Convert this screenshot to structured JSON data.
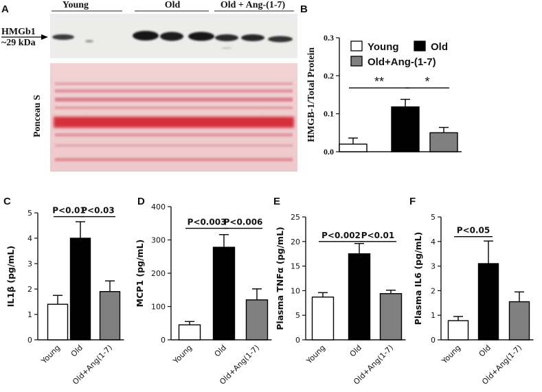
{
  "panel_a": {
    "letter": "A",
    "groups": [
      "Young",
      "Old",
      "Old + Ang-(1-7)"
    ],
    "label_line1": "HMGb1",
    "label_line2": "~29 kDa",
    "ponceau_label": "Ponceau S"
  },
  "chart_data": [
    {
      "panel": "B",
      "type": "bar",
      "categories": [
        "Young",
        "Old",
        "Old+Ang-(1-7)"
      ],
      "values": [
        0.02,
        0.118,
        0.05
      ],
      "errors": [
        0.016,
        0.02,
        0.014
      ],
      "ylabel": "HMGB-1/Total Protein",
      "ylim": [
        0,
        0.3
      ],
      "yticks": [
        "0.0",
        "0.1",
        "0.2",
        "0.3"
      ],
      "tick_values": [
        0,
        0.1,
        0.2,
        0.3
      ],
      "fill_colors": [
        "#ffffff",
        "#000000",
        "#808080"
      ],
      "legend": [
        "Young",
        "Old",
        "Old+Ang-(1-7)"
      ],
      "legend_position": "top",
      "show_category_labels": false,
      "significance": [
        {
          "label": "**",
          "from": 0,
          "to": 1,
          "y": 0.168
        },
        {
          "label": "*",
          "from": 1,
          "to": 2,
          "y": 0.168
        }
      ]
    },
    {
      "panel": "C",
      "type": "bar",
      "categories": [
        "Young",
        "Old",
        "Old+Ang(1-7)"
      ],
      "values": [
        1.4,
        4.0,
        1.9
      ],
      "errors": [
        0.35,
        0.65,
        0.42
      ],
      "ylabel": "IL1β (pg/mL)",
      "ylim": [
        0,
        5
      ],
      "yticks": [
        "0",
        "1",
        "2",
        "3",
        "4",
        "5"
      ],
      "tick_values": [
        0,
        1,
        2,
        3,
        4,
        5
      ],
      "fill_colors": [
        "#ffffff",
        "#000000",
        "#808080"
      ],
      "significance": [
        {
          "label": "P<0.01",
          "from": 0,
          "to": 1,
          "y": 4.85
        },
        {
          "label": "P<0.03",
          "from": 1,
          "to": 2,
          "y": 4.85
        }
      ]
    },
    {
      "panel": "D",
      "type": "bar",
      "categories": [
        "Young",
        "Old",
        "Old+Ang(1-7)"
      ],
      "values": [
        45,
        278,
        120
      ],
      "errors": [
        10,
        38,
        33
      ],
      "ylabel": "MCP1 (pg/mL)",
      "ylim": [
        0,
        400
      ],
      "yticks": [
        "0",
        "100",
        "200",
        "300",
        "400"
      ],
      "tick_values": [
        0,
        100,
        200,
        300,
        400
      ],
      "fill_colors": [
        "#ffffff",
        "#000000",
        "#808080"
      ],
      "significance": [
        {
          "label": "P<0.003",
          "from": 0,
          "to": 1,
          "y": 335
        },
        {
          "label": "P<0.006",
          "from": 1,
          "to": 2,
          "y": 335
        }
      ]
    },
    {
      "panel": "E",
      "type": "bar",
      "categories": [
        "Young",
        "Old",
        "Old+Ang(1-7)"
      ],
      "values": [
        8.7,
        17.5,
        9.4
      ],
      "errors": [
        0.9,
        2.1,
        0.7
      ],
      "ylabel": "Plasma TNFα (pg/mL)",
      "ylim": [
        0,
        25
      ],
      "yticks": [
        "0",
        "5",
        "10",
        "15",
        "20",
        "25"
      ],
      "tick_values": [
        0,
        5,
        10,
        15,
        20,
        25
      ],
      "fill_colors": [
        "#ffffff",
        "#000000",
        "#808080"
      ],
      "significance": [
        {
          "label": "P<0.002",
          "from": 0,
          "to": 1,
          "y": 20
        },
        {
          "label": "P<0.01",
          "from": 1,
          "to": 2,
          "y": 20
        }
      ]
    },
    {
      "panel": "F",
      "type": "bar",
      "categories": [
        "Young",
        "Old",
        "Old+Ang(1-7)"
      ],
      "values": [
        0.78,
        3.1,
        1.55
      ],
      "errors": [
        0.17,
        0.92,
        0.4
      ],
      "ylabel": "Plasma IL6 (pg/mL)",
      "ylim": [
        0,
        5
      ],
      "yticks": [
        "0",
        "1",
        "2",
        "3",
        "4",
        "5"
      ],
      "tick_values": [
        0,
        1,
        2,
        3,
        4,
        5
      ],
      "fill_colors": [
        "#ffffff",
        "#000000",
        "#808080"
      ],
      "significance": [
        {
          "label": "P<0.05",
          "from": 0,
          "to": 1,
          "y": 4.2
        }
      ]
    }
  ]
}
